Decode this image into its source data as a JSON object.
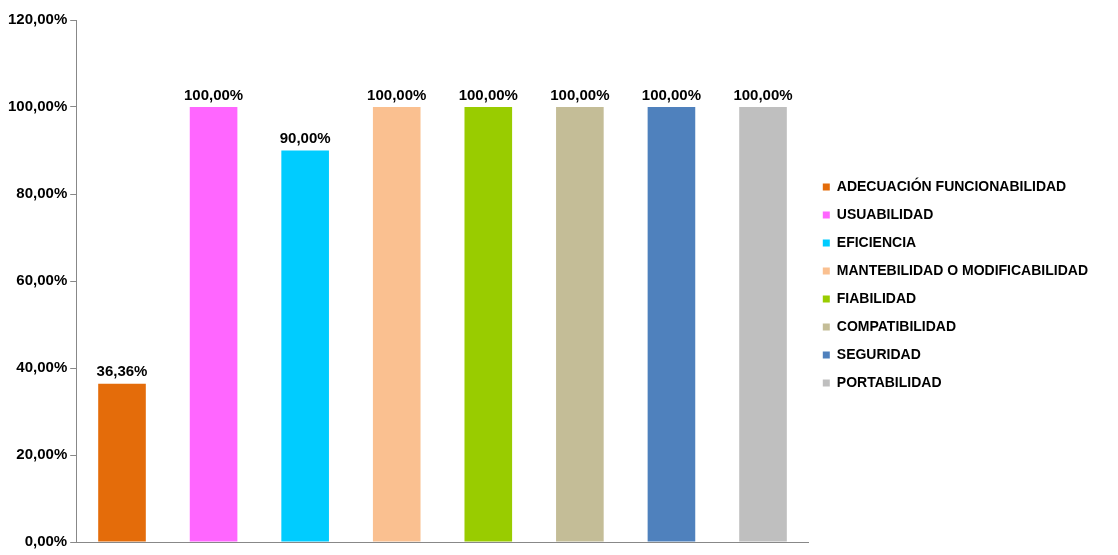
{
  "chart_data": {
    "type": "bar",
    "categories": [
      null
    ],
    "series": [
      {
        "name": "ADECUACIÓN FUNCIONABILIDAD",
        "color": "#e46c0a",
        "values": [
          36.36
        ],
        "value_labels": [
          "36,36%"
        ]
      },
      {
        "name": "USUABILIDAD",
        "color": "#ff66ff",
        "values": [
          100
        ],
        "value_labels": [
          "100,00%"
        ]
      },
      {
        "name": "EFICIENCIA",
        "color": "#00ccff",
        "values": [
          90
        ],
        "value_labels": [
          "90,00%"
        ]
      },
      {
        "name": "MANTEBILIDAD O MODIFICABILIDAD",
        "color": "#fac090",
        "values": [
          100
        ],
        "value_labels": [
          "100,00%"
        ]
      },
      {
        "name": "FIABILIDAD",
        "color": "#99cc00",
        "values": [
          100
        ],
        "value_labels": [
          "100,00%"
        ]
      },
      {
        "name": "COMPATIBILIDAD",
        "color": "#c4bd97",
        "values": [
          100
        ],
        "value_labels": [
          "100,00%"
        ]
      },
      {
        "name": "SEGURIDAD",
        "color": "#4f81bd",
        "values": [
          100
        ],
        "value_labels": [
          "100,00%"
        ]
      },
      {
        "name": "PORTABILIDAD",
        "color": "#bfbfbf",
        "values": [
          100
        ],
        "value_labels": [
          "100,00%"
        ]
      }
    ],
    "ylim": [
      0,
      120
    ],
    "yticks": [
      {
        "value": 0,
        "label": "0,00%"
      },
      {
        "value": 20,
        "label": "20,00%"
      },
      {
        "value": 40,
        "label": "40,00%"
      },
      {
        "value": 60,
        "label": "60,00%"
      },
      {
        "value": 80,
        "label": "80,00%"
      },
      {
        "value": 100,
        "label": "100,00%"
      },
      {
        "value": 120,
        "label": "120,00%"
      }
    ],
    "legend": "right",
    "tick_labels": "y",
    "grid": false
  }
}
